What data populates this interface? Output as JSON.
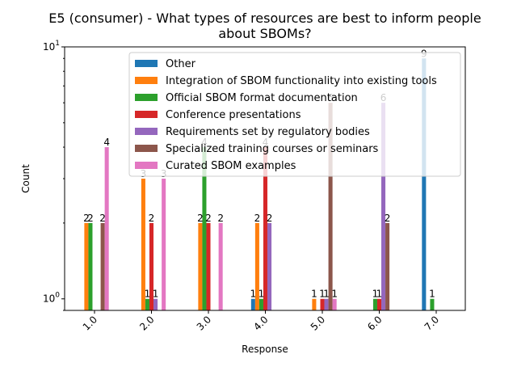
{
  "chart_data": {
    "type": "bar",
    "title_lines": [
      "E5 (consumer) - What types of resources are best to inform people",
      "about SBOMs?"
    ],
    "xlabel": "Response",
    "ylabel": "Count",
    "y_scale": "log",
    "ylim": [
      0.9,
      10
    ],
    "y_ticks": [
      {
        "base": "10",
        "exp": "0",
        "value": 1
      },
      {
        "base": "10",
        "exp": "1",
        "value": 10
      }
    ],
    "grid": false,
    "legend_position": "upper right",
    "categories": [
      "1.0",
      "2.0",
      "3.0",
      "4.0",
      "5.0",
      "6.0",
      "7.0"
    ],
    "series": [
      {
        "name": "Other",
        "color": "#1f77b4",
        "values": [
          null,
          null,
          null,
          1,
          null,
          null,
          9
        ]
      },
      {
        "name": "Integration of SBOM functionality into existing tools",
        "color": "#ff7f0e",
        "values": [
          2,
          3,
          2,
          2,
          1,
          null,
          null
        ]
      },
      {
        "name": "Official SBOM format documentation",
        "color": "#2ca02c",
        "values": [
          2,
          1,
          4,
          1,
          null,
          1,
          1
        ]
      },
      {
        "name": "Conference presentations",
        "color": "#d62728",
        "values": [
          null,
          2,
          2,
          4,
          1,
          1,
          null
        ]
      },
      {
        "name": "Requirements set by regulatory bodies",
        "color": "#9467bd",
        "values": [
          null,
          1,
          null,
          2,
          1,
          6,
          null
        ]
      },
      {
        "name": "Specialized training courses or seminars",
        "color": "#8c564b",
        "values": [
          2,
          null,
          null,
          null,
          6,
          2,
          null
        ]
      },
      {
        "name": "Curated SBOM examples",
        "color": "#e377c2",
        "values": [
          4,
          3,
          2,
          null,
          1,
          null,
          null
        ]
      }
    ]
  }
}
